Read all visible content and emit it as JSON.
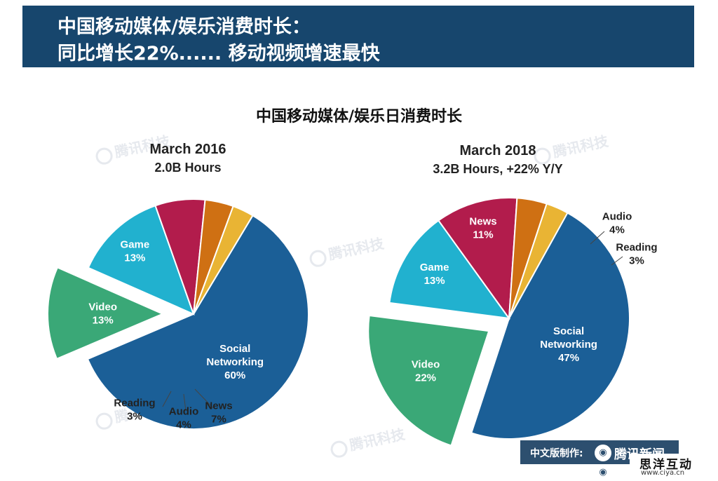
{
  "banner": {
    "line1": "中国移动媒体/娱乐消费时长：",
    "line2": "同比增长22%...... 移动视频增速最快"
  },
  "chart_title": "中国移动媒体/娱乐日消费时长",
  "watermark": "腾讯科技",
  "footer": {
    "label": "中文版制作:",
    "brand": "腾讯新闻"
  },
  "site": {
    "name": "思洋互动",
    "url": "www.ciya.cn"
  },
  "colors": {
    "banner": "#17466d",
    "Social Networking": "#1b5f97",
    "Video": "#3aa877",
    "Game": "#21b1cf",
    "News": "#b21c4c",
    "Audio": "#cf7013",
    "Reading": "#e9b434"
  },
  "chart_data": [
    {
      "type": "pie",
      "title": "March 2016",
      "subtitle": "2.0B Hours",
      "categories": [
        "Social Networking",
        "Video",
        "Game",
        "News",
        "Audio",
        "Reading"
      ],
      "values": [
        60,
        13,
        13,
        7,
        4,
        3
      ],
      "exploded": [
        "Video"
      ],
      "labels": [
        {
          "category": "Social Networking",
          "lines": [
            "Social",
            "Networking",
            "60%"
          ]
        },
        {
          "category": "Video",
          "lines": [
            "Video",
            "13%"
          ]
        },
        {
          "category": "Game",
          "lines": [
            "Game",
            "13%"
          ]
        },
        {
          "category": "News",
          "lines": [
            "News",
            "7%"
          ]
        },
        {
          "category": "Audio",
          "lines": [
            "Audio",
            "4%"
          ]
        },
        {
          "category": "Reading",
          "lines": [
            "Reading",
            "3%"
          ]
        }
      ]
    },
    {
      "type": "pie",
      "title": "March 2018",
      "subtitle": "3.2B Hours, +22% Y/Y",
      "categories": [
        "Social Networking",
        "Video",
        "Game",
        "News",
        "Audio",
        "Reading"
      ],
      "values": [
        47,
        22,
        13,
        11,
        4,
        3
      ],
      "exploded": [
        "Video"
      ],
      "labels": [
        {
          "category": "Social Networking",
          "lines": [
            "Social",
            "Networking",
            "47%"
          ]
        },
        {
          "category": "Video",
          "lines": [
            "Video",
            "22%"
          ]
        },
        {
          "category": "Game",
          "lines": [
            "Game",
            "13%"
          ]
        },
        {
          "category": "News",
          "lines": [
            "News",
            "11%"
          ]
        },
        {
          "category": "Audio",
          "lines": [
            "Audio",
            "4%"
          ]
        },
        {
          "category": "Reading",
          "lines": [
            "Reading",
            "3%"
          ]
        }
      ]
    }
  ]
}
